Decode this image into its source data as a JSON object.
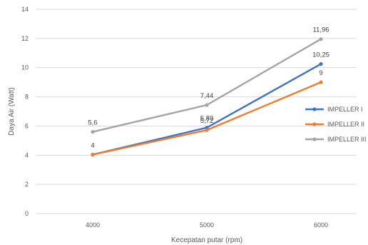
{
  "chart_data": {
    "type": "line",
    "categories": [
      "4000",
      "5000",
      "6000"
    ],
    "xlabel": "Kecepatan putar (rpm)",
    "ylabel": "Daya Air (Watt)",
    "ylim": [
      0,
      14
    ],
    "yticks": [
      "0",
      "2",
      "4",
      "6",
      "8",
      "10",
      "12",
      "14"
    ],
    "grid": true,
    "legend_position": "right",
    "series": [
      {
        "name": "IMPELLER I",
        "color": "#4472c4",
        "values": [
          4.04,
          5.89,
          10.25
        ],
        "labels": [
          "4",
          "5,89",
          "10,25"
        ]
      },
      {
        "name": "IMPELLER II",
        "color": "#ed7d31",
        "values": [
          4.04,
          5.72,
          9.0
        ],
        "labels": [
          "",
          "5,72",
          "9"
        ]
      },
      {
        "name": "IMPELLER III",
        "color": "#a5a5a5",
        "values": [
          5.6,
          7.44,
          11.96
        ],
        "labels": [
          "5,6",
          "7,44",
          "11,96"
        ]
      }
    ]
  }
}
